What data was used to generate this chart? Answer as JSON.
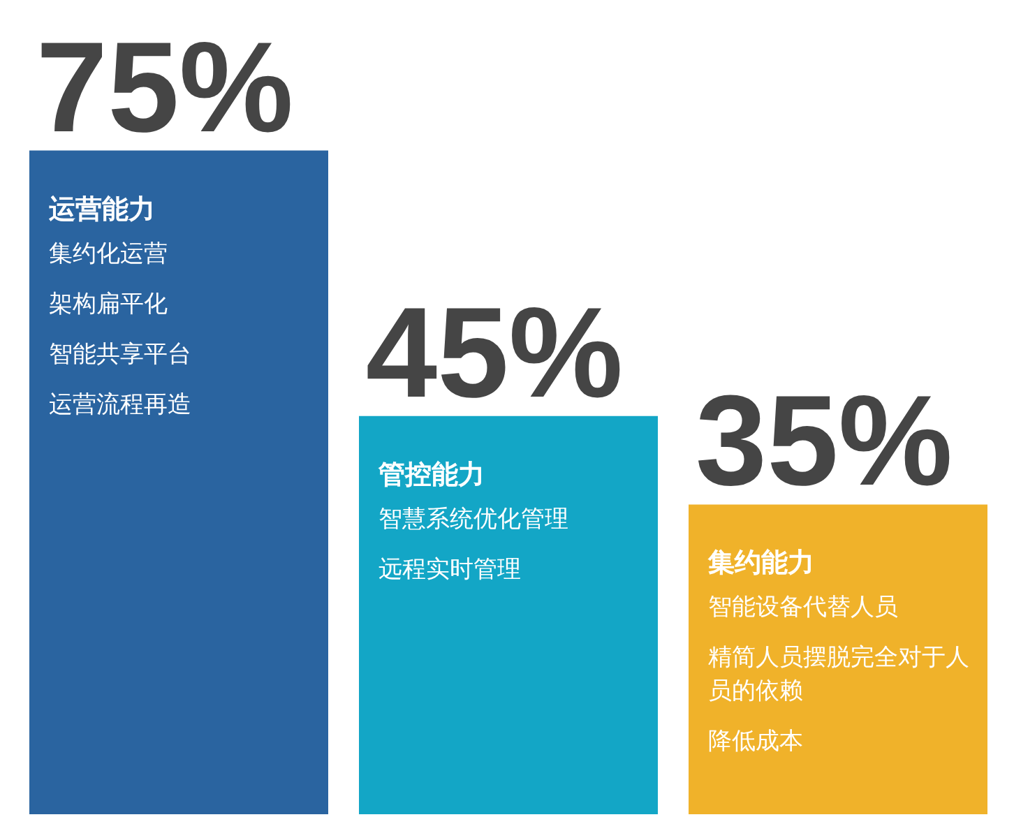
{
  "chart_data": {
    "type": "bar",
    "categories": [
      "运营能力",
      "管控能力",
      "集约能力"
    ],
    "values": [
      75,
      45,
      35
    ],
    "colors": [
      "#2a64a0",
      "#13a6c6",
      "#f0b22a"
    ],
    "value_labels": [
      "75%",
      "45%",
      "35%"
    ],
    "annotations": [
      "集约化运营",
      "架构扁平化",
      "智能共享平台",
      "运营流程再造",
      "智慧系统优化管理",
      "远程实时管理",
      "智能设备代替人员",
      "精简人员摆脱完全对于人员的依赖",
      "降低成本"
    ]
  }
}
